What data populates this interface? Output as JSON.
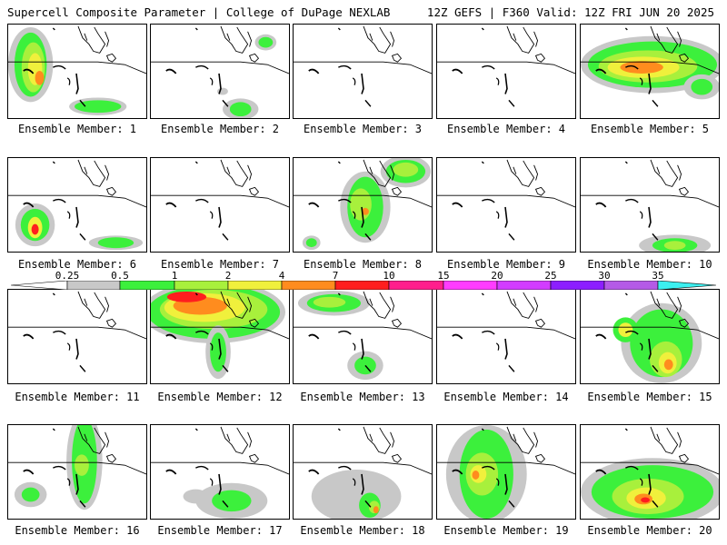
{
  "header": {
    "title": "Supercell Composite Parameter | College of DuPage NEXLAB",
    "run_info": "12Z GEFS | F360 Valid: 12Z FRI JUN 20 2025"
  },
  "colorbar": {
    "labels": [
      "0.25",
      "0.5",
      "1",
      "2",
      "4",
      "7",
      "10",
      "15",
      "20",
      "25",
      "30",
      "35"
    ],
    "colors": [
      "#ffffff",
      "#c8c8c8",
      "#3cf03c",
      "#a8f03c",
      "#f0f03c",
      "#ff8c1e",
      "#ff1e1e",
      "#ff1e8c",
      "#ff3cff",
      "#d23cff",
      "#8c1eff",
      "#b45ae6",
      "#3cf0f0"
    ]
  },
  "panels": [
    {
      "label": "Ensemble Member: 1",
      "member": 1
    },
    {
      "label": "Ensemble Member: 2",
      "member": 2
    },
    {
      "label": "Ensemble Member: 3",
      "member": 3
    },
    {
      "label": "Ensemble Member: 4",
      "member": 4
    },
    {
      "label": "Ensemble Member: 5",
      "member": 5
    },
    {
      "label": "Ensemble Member: 6",
      "member": 6
    },
    {
      "label": "Ensemble Member: 7",
      "member": 7
    },
    {
      "label": "Ensemble Member: 8",
      "member": 8
    },
    {
      "label": "Ensemble Member: 9",
      "member": 9
    },
    {
      "label": "Ensemble Member: 10",
      "member": 10
    },
    {
      "label": "Ensemble Member: 11",
      "member": 11
    },
    {
      "label": "Ensemble Member: 12",
      "member": 12
    },
    {
      "label": "Ensemble Member: 13",
      "member": 13
    },
    {
      "label": "Ensemble Member: 14",
      "member": 14
    },
    {
      "label": "Ensemble Member: 15",
      "member": 15
    },
    {
      "label": "Ensemble Member: 16",
      "member": 16
    },
    {
      "label": "Ensemble Member: 17",
      "member": 17
    },
    {
      "label": "Ensemble Member: 18",
      "member": 18
    },
    {
      "label": "Ensemble Member: 19",
      "member": 19
    },
    {
      "label": "Ensemble Member: 20",
      "member": 20
    }
  ]
}
